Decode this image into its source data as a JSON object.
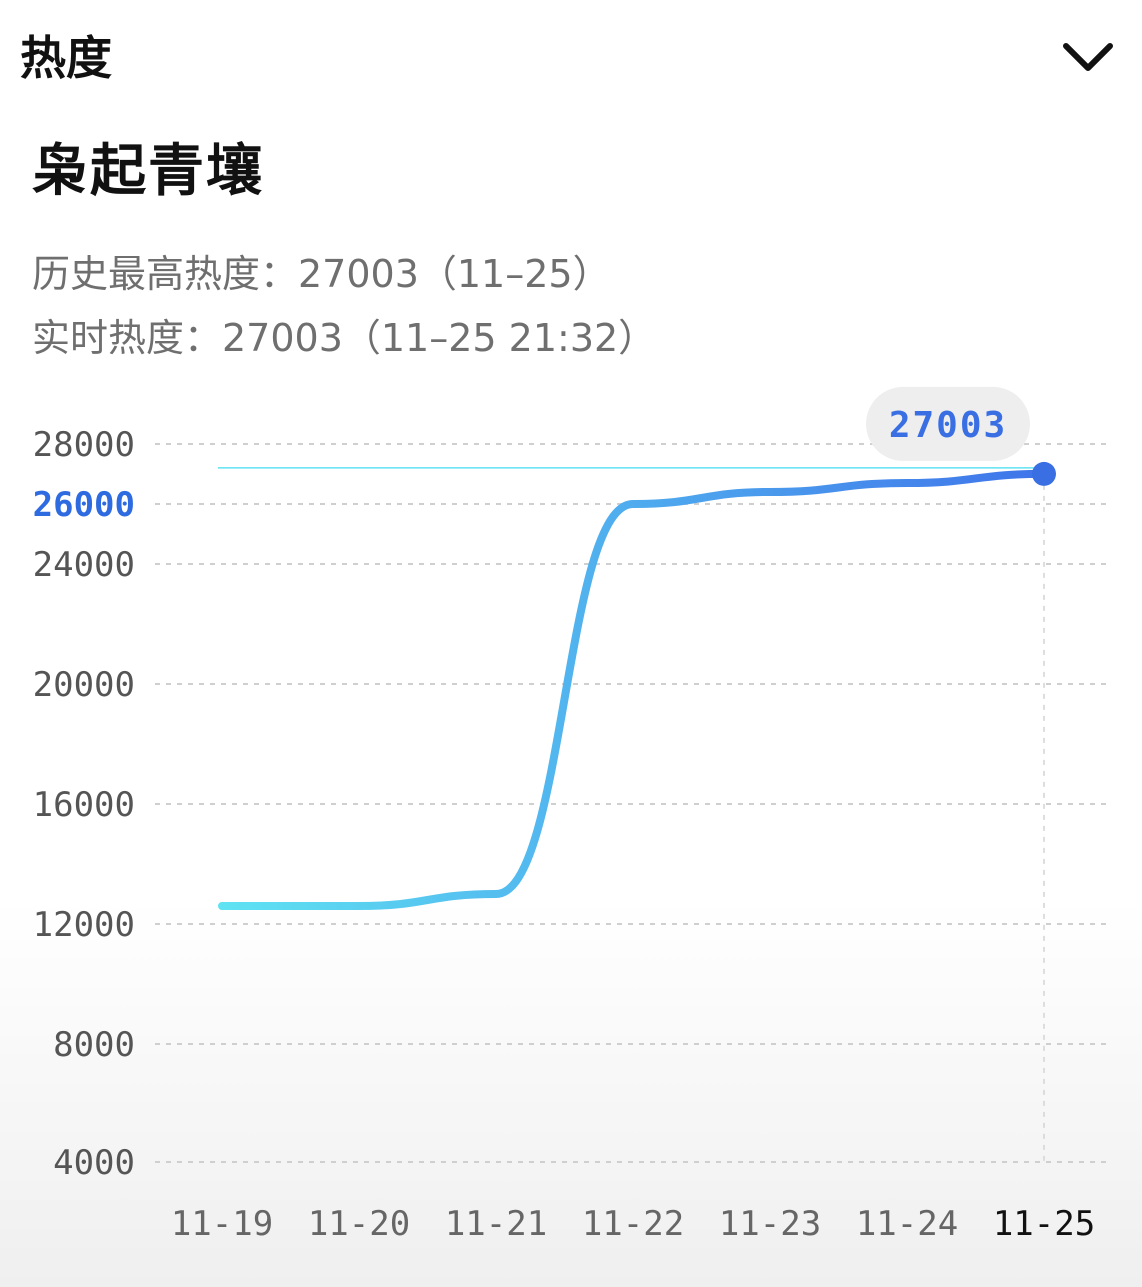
{
  "header": {
    "title": "热度",
    "collapse_icon": "chevron-down-icon"
  },
  "topic": {
    "name": "枭起青壤"
  },
  "stats": {
    "peak_line": "历史最高热度：27003（11–25）",
    "realtime_line": "实时热度：27003（11–25 21:32）"
  },
  "colors": {
    "accent": "#3a6fe4",
    "line_start": "#5fe3f2",
    "line_end": "#3f74ea"
  },
  "chart_data": {
    "type": "line",
    "categories": [
      "11-19",
      "11-20",
      "11-21",
      "11-22",
      "11-23",
      "11-24",
      "11-25"
    ],
    "series": [
      {
        "values": [
          12600,
          12600,
          13000,
          26000,
          26400,
          26700,
          27003
        ]
      }
    ],
    "ytick_labels": [
      "28000",
      "26000",
      "24000",
      "20000",
      "16000",
      "12000",
      "8000",
      "4000"
    ],
    "highlight_ytick": "26000",
    "highlight_category": "11-25",
    "tooltip": {
      "category": "11-25",
      "value": "27003"
    },
    "grid": true
  }
}
